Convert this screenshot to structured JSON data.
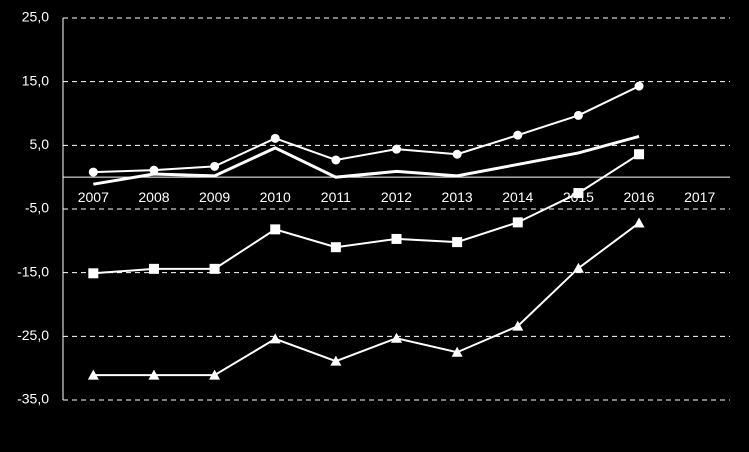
{
  "chart_data": {
    "type": "line",
    "categories": [
      "2007",
      "2008",
      "2009",
      "2010",
      "2011",
      "2012",
      "2013",
      "2014",
      "2015",
      "2016",
      "2017"
    ],
    "series": [
      {
        "color": "#ffffff",
        "marker": "circle",
        "values": [
          0.8,
          1.1,
          1.7,
          6.1,
          2.7,
          4.4,
          3.6,
          6.6,
          9.7,
          14.3,
          null
        ]
      },
      {
        "color": "#ffffff",
        "marker": "none",
        "values": [
          -1.1,
          0.5,
          0.2,
          4.6,
          0.0,
          0.9,
          0.2,
          2.0,
          3.8,
          6.4,
          null
        ]
      },
      {
        "color": "#ffffff",
        "marker": "square",
        "values": [
          -15.1,
          -14.4,
          -14.4,
          -8.2,
          -11.0,
          -9.7,
          -10.2,
          -7.1,
          -2.5,
          3.6,
          null
        ]
      },
      {
        "color": "#ffffff",
        "marker": "triangle",
        "values": [
          -31.1,
          -31.1,
          -31.1,
          -25.4,
          -28.9,
          -25.3,
          -27.5,
          -23.4,
          -14.3,
          -7.2,
          null
        ]
      }
    ],
    "ylim": [
      -35,
      25
    ],
    "yticks": [
      {
        "value": -35,
        "label": "-35,0"
      },
      {
        "value": -25,
        "label": "-25,0"
      },
      {
        "value": -15,
        "label": "-15,0"
      },
      {
        "value": -5,
        "label": "-5,0"
      },
      {
        "value": 5,
        "label": "5,0"
      },
      {
        "value": 15,
        "label": "15,0"
      },
      {
        "value": 25,
        "label": "25,0"
      }
    ],
    "grid": true
  }
}
